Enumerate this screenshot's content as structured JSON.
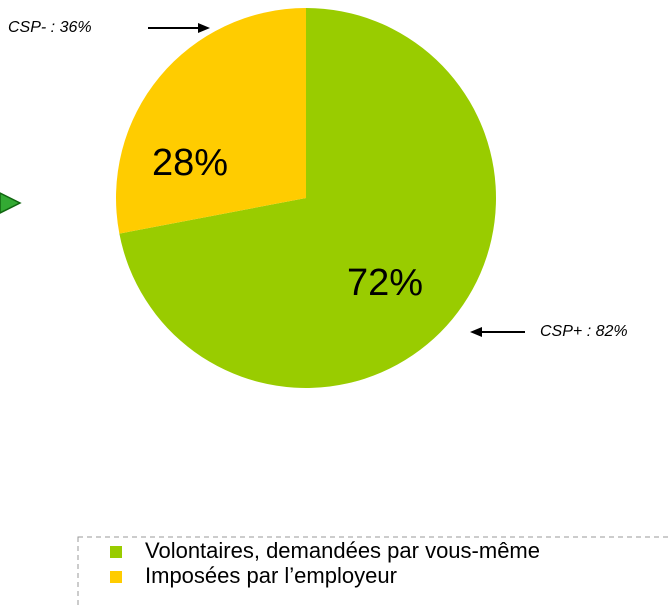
{
  "chart_data": {
    "type": "pie",
    "categories": [
      "Volontaires, demandées par vous-même",
      "Imposées par l’employeur"
    ],
    "values": [
      72,
      28
    ],
    "value_labels": [
      "72%",
      "28%"
    ],
    "colors": [
      "#99cc00",
      "#ffcc00"
    ],
    "annotations": [
      "CSP- : 36%",
      "CSP+ : 82%"
    ]
  }
}
